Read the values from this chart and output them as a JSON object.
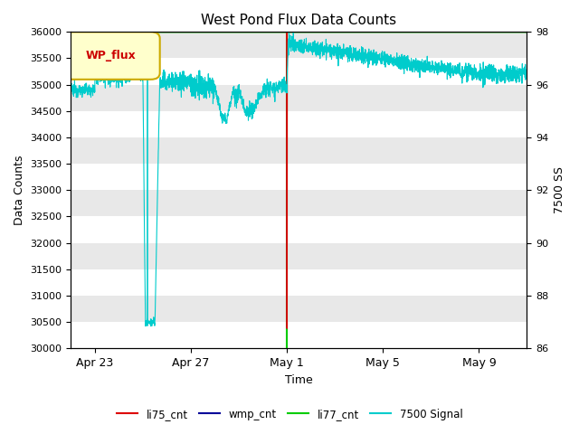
{
  "title": "West Pond Flux Data Counts",
  "xlabel": "Time",
  "ylabel_left": "Data Counts",
  "ylabel_right": "7500 SS",
  "legend_label": "WP_flux",
  "legend_box_color": "#ffffcc",
  "legend_box_edge": "#ccaa00",
  "legend_text_color": "#cc0000",
  "background_color": "#e8e8e8",
  "ylim_left": [
    30000,
    36000
  ],
  "ylim_right": [
    86,
    98
  ],
  "yticks_left": [
    30000,
    30500,
    31000,
    31500,
    32000,
    32500,
    33000,
    33500,
    34000,
    34500,
    35000,
    35500,
    36000
  ],
  "yticks_right": [
    86,
    88,
    90,
    92,
    94,
    96,
    98
  ],
  "series_colors": {
    "li75_cnt": "#dd0000",
    "wmp_cnt": "#000099",
    "li77_cnt": "#00cc00",
    "signal": "#00cccc"
  },
  "xtick_labels": [
    "Apr 23",
    "Apr 27",
    "May 1",
    "May 5",
    "May 9"
  ],
  "xtick_positions": [
    1,
    5,
    9,
    13,
    17
  ],
  "xlim": [
    0,
    19
  ],
  "stripe_color": "#ffffff",
  "stripe_alpha": 1.0,
  "stripe_intervals": [
    [
      30000,
      30500
    ],
    [
      31000,
      31500
    ],
    [
      32000,
      32500
    ],
    [
      33000,
      33500
    ],
    [
      34000,
      34500
    ],
    [
      35000,
      35500
    ]
  ]
}
